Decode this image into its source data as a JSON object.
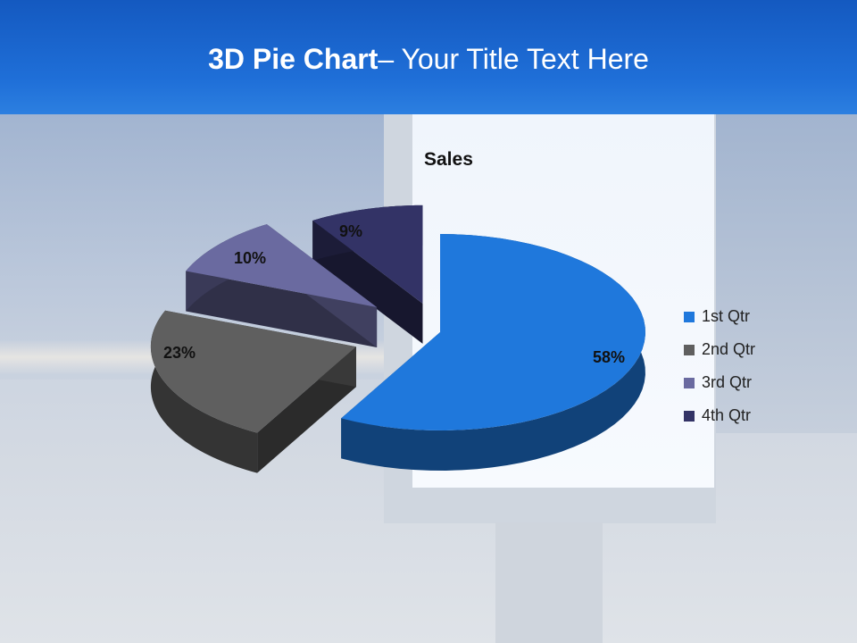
{
  "slide": {
    "title_bold": "3D Pie Chart",
    "title_rest": "– Your Title Text Here"
  },
  "chart_data": {
    "type": "pie",
    "style": "3d-exploded",
    "title": "Sales",
    "categories": [
      "1st Qtr",
      "2nd Qtr",
      "3rd Qtr",
      "4th Qtr"
    ],
    "values": [
      58,
      23,
      10,
      9
    ],
    "data_labels": [
      "58%",
      "23%",
      "10%",
      "9%"
    ],
    "colors": [
      "#1f78dc",
      "#5f5f5f",
      "#6a6aa0",
      "#333366"
    ],
    "legend_position": "right"
  }
}
